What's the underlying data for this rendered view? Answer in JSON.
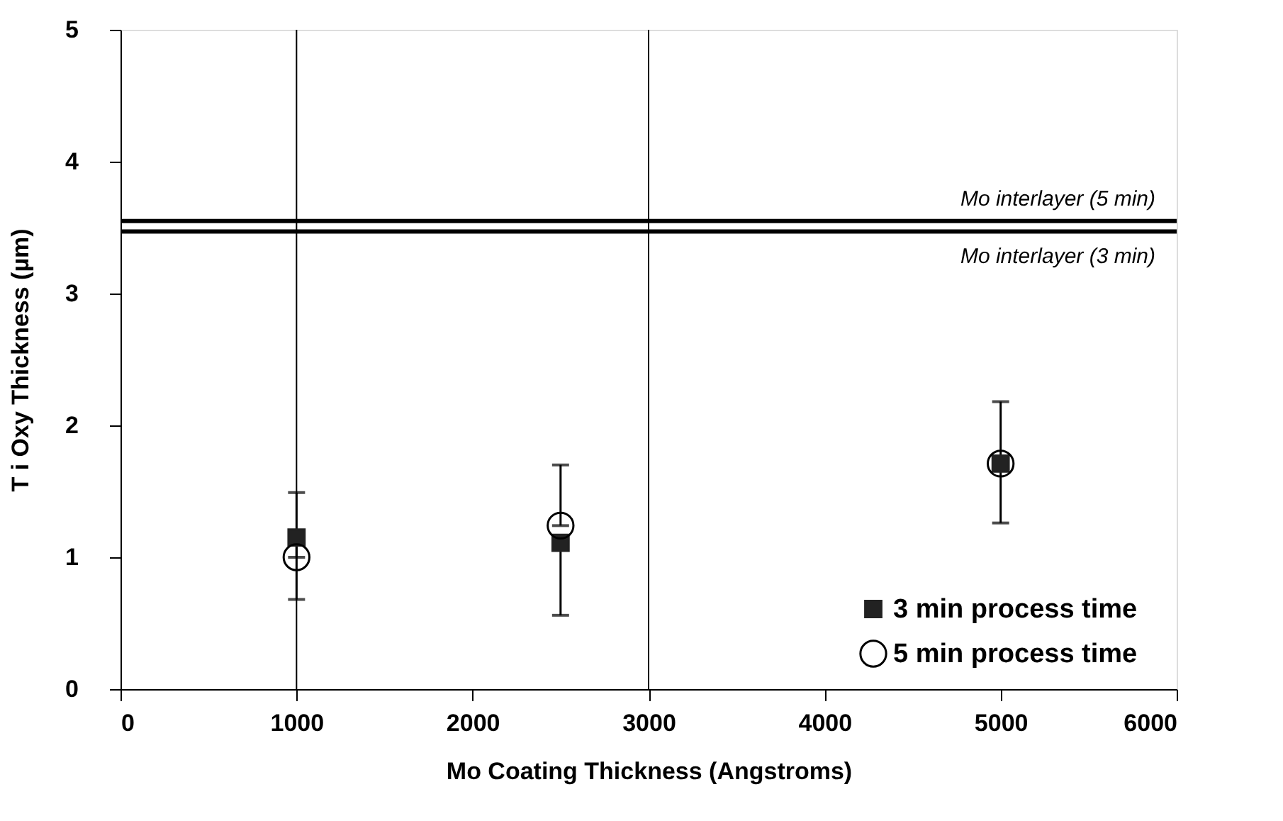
{
  "chart_data": {
    "type": "scatter",
    "xlabel": "Mo  Coating  Thickness  (Angstroms)",
    "ylabel": "T i Oxy Thickness  (µm)",
    "x": [
      1000,
      2500,
      5000
    ],
    "series": [
      {
        "name": "3  min  process  time",
        "color": "#222222",
        "marker": "square",
        "values": [
          1.15,
          1.11,
          1.71
        ],
        "errors": [
          [
            0.68,
            1.15
          ],
          [
            0.56,
            1.11
          ],
          [
            1.26,
            1.71
          ]
        ]
      },
      {
        "name": "5  min  process  time",
        "color": "#000000",
        "marker": "circle",
        "values": [
          1.0,
          1.24,
          1.71
        ],
        "errors": [
          [
            1.0,
            1.49
          ],
          [
            1.24,
            1.7
          ],
          [
            1.71,
            2.18
          ]
        ]
      }
    ],
    "xlim": [
      0,
      6000
    ],
    "xticks": [
      0,
      1000,
      2000,
      3000,
      4000,
      5000,
      6000
    ],
    "ylim": [
      0,
      5
    ],
    "yticks": [
      0,
      1,
      2,
      3,
      4,
      5
    ],
    "ref_lines": [
      {
        "axis": "y",
        "value": 3.55,
        "label": "Mo  interlayer  (5  min)",
        "color": "#000000"
      },
      {
        "axis": "y",
        "value": 3.47,
        "label": "Mo  interlayer  (3  min)",
        "color": "#000000"
      },
      {
        "axis": "x",
        "value": 1000,
        "color": "#000000"
      },
      {
        "axis": "x",
        "value": 3000,
        "color": "#000000"
      }
    ],
    "legend": "bottom right",
    "grid": false
  }
}
